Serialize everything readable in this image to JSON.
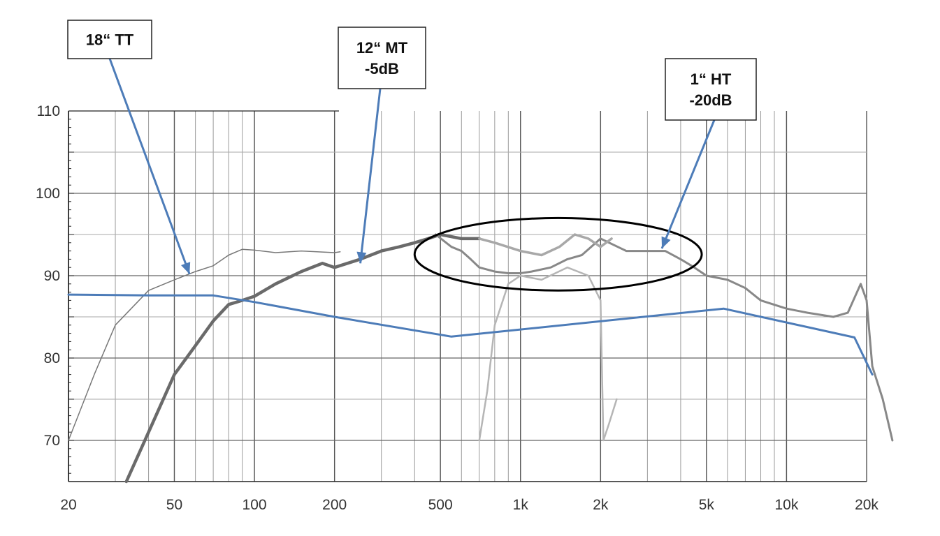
{
  "chart_data": {
    "type": "line",
    "xscale": "log",
    "xlim": [
      20,
      25000
    ],
    "ylim": [
      65,
      110
    ],
    "x_ticks": [
      {
        "value": 20,
        "label": "20"
      },
      {
        "value": 50,
        "label": "50"
      },
      {
        "value": 100,
        "label": "100"
      },
      {
        "value": 200,
        "label": "200"
      },
      {
        "value": 500,
        "label": "500"
      },
      {
        "value": 1000,
        "label": "1k"
      },
      {
        "value": 2000,
        "label": "2k"
      },
      {
        "value": 5000,
        "label": "5k"
      },
      {
        "value": 10000,
        "label": "10k"
      },
      {
        "value": 20000,
        "label": "20k"
      }
    ],
    "y_ticks": [
      {
        "value": 70,
        "label": "70"
      },
      {
        "value": 80,
        "label": "80"
      },
      {
        "value": 90,
        "label": "90"
      },
      {
        "value": 100,
        "label": "100"
      },
      {
        "value": 110,
        "label": "110"
      }
    ],
    "grid": true,
    "series": [
      {
        "color": "#777777",
        "points": [
          [
            20,
            70
          ],
          [
            25,
            78
          ],
          [
            30,
            84
          ],
          [
            40,
            88.2
          ],
          [
            50,
            89.5
          ],
          [
            60,
            90.5
          ],
          [
            70,
            91.2
          ],
          [
            80,
            92.5
          ],
          [
            90,
            93.2
          ],
          [
            100,
            93.1
          ],
          [
            120,
            92.8
          ],
          [
            150,
            93
          ],
          [
            200,
            92.8
          ],
          [
            210,
            92.9
          ]
        ]
      },
      {
        "color": "#6a6a6a",
        "points": [
          [
            33,
            65
          ],
          [
            40,
            71
          ],
          [
            50,
            78
          ],
          [
            60,
            81.5
          ],
          [
            70,
            84.5
          ],
          [
            80,
            86.5
          ],
          [
            90,
            87
          ],
          [
            100,
            87.5
          ],
          [
            120,
            89
          ],
          [
            150,
            90.5
          ],
          [
            180,
            91.5
          ],
          [
            200,
            91
          ],
          [
            250,
            92
          ],
          [
            300,
            93
          ],
          [
            350,
            93.5
          ],
          [
            400,
            94
          ],
          [
            450,
            94.5
          ],
          [
            500,
            95
          ],
          [
            600,
            94.5
          ],
          [
            700,
            94.5
          ]
        ]
      },
      {
        "color": "#888888",
        "points": [
          [
            480,
            95
          ],
          [
            550,
            93.5
          ],
          [
            600,
            93
          ],
          [
            650,
            92
          ],
          [
            700,
            91
          ],
          [
            800,
            90.5
          ],
          [
            900,
            90.3
          ],
          [
            1000,
            90.3
          ],
          [
            1100,
            90.5
          ],
          [
            1300,
            91
          ],
          [
            1500,
            92
          ],
          [
            1700,
            92.5
          ],
          [
            2000,
            94.5
          ],
          [
            2500,
            93
          ],
          [
            3000,
            93
          ],
          [
            3500,
            93
          ],
          [
            4000,
            92
          ],
          [
            4500,
            91
          ],
          [
            5000,
            90
          ],
          [
            6000,
            89.5
          ],
          [
            7000,
            88.5
          ],
          [
            8000,
            87
          ],
          [
            10000,
            86
          ],
          [
            12000,
            85.5
          ],
          [
            15000,
            85
          ],
          [
            17000,
            85.5
          ],
          [
            19000,
            89
          ],
          [
            20000,
            87
          ],
          [
            21000,
            79
          ],
          [
            23000,
            75
          ],
          [
            25000,
            70
          ]
        ]
      },
      {
        "color": "#b5b5b5",
        "points": [
          [
            700,
            70
          ],
          [
            750,
            76
          ],
          [
            800,
            84
          ],
          [
            900,
            89
          ],
          [
            1000,
            90
          ],
          [
            1200,
            89.5
          ],
          [
            1500,
            91
          ],
          [
            1800,
            90
          ],
          [
            2000,
            87
          ],
          [
            2050,
            70
          ],
          [
            2150,
            72
          ],
          [
            2300,
            75
          ]
        ]
      },
      {
        "color": "#a8a8a8",
        "points": [
          [
            700,
            94.5
          ],
          [
            800,
            94
          ],
          [
            1000,
            93
          ],
          [
            1200,
            92.5
          ],
          [
            1400,
            93.5
          ],
          [
            1600,
            95
          ],
          [
            1800,
            94.5
          ],
          [
            2000,
            93.5
          ],
          [
            2200,
            94.5
          ]
        ]
      },
      {
        "color": "#4d7cb8",
        "points": [
          [
            20,
            87.7
          ],
          [
            40,
            87.6
          ],
          [
            70,
            87.6
          ],
          [
            100,
            86.8
          ],
          [
            200,
            85
          ],
          [
            550,
            82.6
          ],
          [
            5800,
            86
          ],
          [
            18000,
            82.5
          ],
          [
            21000,
            78
          ]
        ]
      }
    ],
    "annotations": [
      {
        "lines": [
          "18“ TT"
        ],
        "target": [
          57,
          90.2
        ]
      },
      {
        "lines": [
          "12“ MT",
          "-5dB"
        ],
        "target": [
          250,
          91.5
        ]
      },
      {
        "lines": [
          "1“ HT",
          "-20dB"
        ],
        "target": [
          3400,
          93.3
        ]
      }
    ],
    "highlight_ellipse": {
      "center": [
        1300,
        92.5
      ],
      "x_from": 400,
      "x_to": 4800,
      "y_from": 88.2,
      "y_to": 97
    }
  }
}
